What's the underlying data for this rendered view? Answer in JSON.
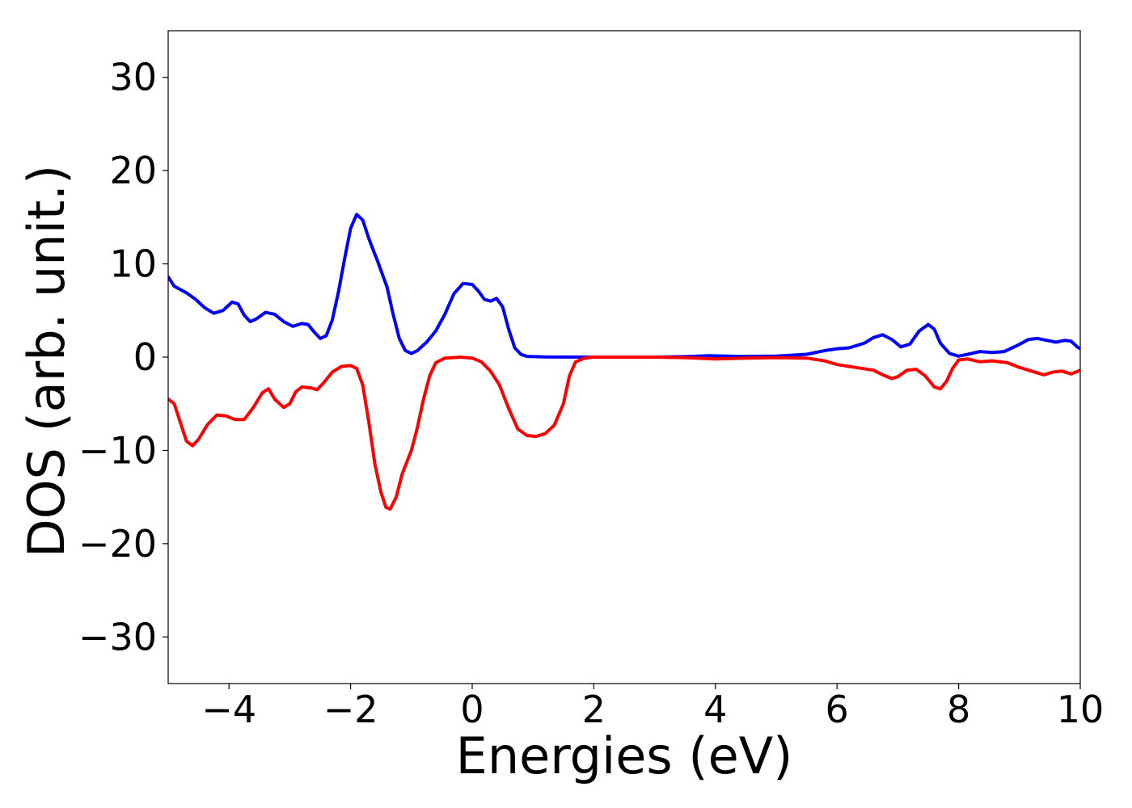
{
  "chart_data": {
    "type": "line",
    "title": "",
    "xlabel": "Energies (eV)",
    "ylabel": "DOS (arb. unit.)",
    "xlim": [
      -5,
      10
    ],
    "ylim": [
      -35,
      35
    ],
    "xticks": [
      -4,
      -2,
      0,
      2,
      4,
      6,
      8,
      10
    ],
    "xtick_labels": [
      "−4",
      "−2",
      "0",
      "2",
      "4",
      "6",
      "8",
      "10"
    ],
    "yticks": [
      -30,
      -20,
      -10,
      0,
      10,
      20,
      30
    ],
    "ytick_labels": [
      "−30",
      "−20",
      "−10",
      "0",
      "10",
      "20",
      "30"
    ],
    "grid": false,
    "legend": null,
    "series": [
      {
        "color": "#0000ff",
        "points": [
          [
            -5.0,
            8.6
          ],
          [
            -4.9,
            7.6
          ],
          [
            -4.7,
            6.9
          ],
          [
            -4.55,
            6.2
          ],
          [
            -4.4,
            5.3
          ],
          [
            -4.25,
            4.7
          ],
          [
            -4.1,
            5.0
          ],
          [
            -3.95,
            5.9
          ],
          [
            -3.85,
            5.7
          ],
          [
            -3.75,
            4.5
          ],
          [
            -3.65,
            3.8
          ],
          [
            -3.55,
            4.1
          ],
          [
            -3.4,
            4.8
          ],
          [
            -3.25,
            4.6
          ],
          [
            -3.1,
            3.8
          ],
          [
            -2.95,
            3.3
          ],
          [
            -2.8,
            3.6
          ],
          [
            -2.7,
            3.5
          ],
          [
            -2.6,
            2.7
          ],
          [
            -2.5,
            2.0
          ],
          [
            -2.4,
            2.3
          ],
          [
            -2.3,
            4.0
          ],
          [
            -2.2,
            7.0
          ],
          [
            -2.1,
            10.5
          ],
          [
            -2.0,
            13.8
          ],
          [
            -1.9,
            15.3
          ],
          [
            -1.8,
            14.7
          ],
          [
            -1.7,
            12.7
          ],
          [
            -1.55,
            10.2
          ],
          [
            -1.4,
            7.5
          ],
          [
            -1.3,
            4.6
          ],
          [
            -1.2,
            2.0
          ],
          [
            -1.1,
            0.7
          ],
          [
            -1.0,
            0.4
          ],
          [
            -0.9,
            0.7
          ],
          [
            -0.75,
            1.6
          ],
          [
            -0.6,
            2.8
          ],
          [
            -0.45,
            4.6
          ],
          [
            -0.3,
            6.8
          ],
          [
            -0.15,
            7.9
          ],
          [
            0.0,
            7.8
          ],
          [
            0.1,
            7.1
          ],
          [
            0.2,
            6.2
          ],
          [
            0.3,
            6.0
          ],
          [
            0.4,
            6.3
          ],
          [
            0.5,
            5.4
          ],
          [
            0.6,
            3.0
          ],
          [
            0.7,
            1.0
          ],
          [
            0.8,
            0.3
          ],
          [
            0.9,
            0.08
          ],
          [
            1.2,
            0.02
          ],
          [
            2.0,
            0.0
          ],
          [
            3.0,
            0.0
          ],
          [
            3.5,
            0.05
          ],
          [
            3.9,
            0.15
          ],
          [
            4.4,
            0.08
          ],
          [
            5.0,
            0.1
          ],
          [
            5.5,
            0.3
          ],
          [
            5.8,
            0.7
          ],
          [
            6.0,
            0.9
          ],
          [
            6.2,
            1.0
          ],
          [
            6.45,
            1.5
          ],
          [
            6.6,
            2.1
          ],
          [
            6.75,
            2.4
          ],
          [
            6.9,
            1.9
          ],
          [
            7.05,
            1.1
          ],
          [
            7.2,
            1.4
          ],
          [
            7.35,
            2.8
          ],
          [
            7.5,
            3.5
          ],
          [
            7.6,
            3.0
          ],
          [
            7.7,
            1.5
          ],
          [
            7.85,
            0.4
          ],
          [
            8.0,
            0.1
          ],
          [
            8.15,
            0.3
          ],
          [
            8.35,
            0.6
          ],
          [
            8.55,
            0.5
          ],
          [
            8.75,
            0.6
          ],
          [
            8.95,
            1.2
          ],
          [
            9.15,
            1.9
          ],
          [
            9.3,
            2.0
          ],
          [
            9.45,
            1.8
          ],
          [
            9.6,
            1.6
          ],
          [
            9.75,
            1.8
          ],
          [
            9.85,
            1.7
          ],
          [
            9.95,
            1.1
          ],
          [
            10.0,
            0.9
          ]
        ]
      },
      {
        "color": "#ff0000",
        "points": [
          [
            -5.0,
            -4.5
          ],
          [
            -4.9,
            -5.0
          ],
          [
            -4.8,
            -7.0
          ],
          [
            -4.7,
            -9.0
          ],
          [
            -4.6,
            -9.5
          ],
          [
            -4.5,
            -8.8
          ],
          [
            -4.35,
            -7.2
          ],
          [
            -4.2,
            -6.2
          ],
          [
            -4.05,
            -6.3
          ],
          [
            -3.9,
            -6.7
          ],
          [
            -3.75,
            -6.7
          ],
          [
            -3.6,
            -5.4
          ],
          [
            -3.45,
            -3.8
          ],
          [
            -3.35,
            -3.4
          ],
          [
            -3.25,
            -4.5
          ],
          [
            -3.1,
            -5.4
          ],
          [
            -3.0,
            -5.0
          ],
          [
            -2.9,
            -3.7
          ],
          [
            -2.8,
            -3.2
          ],
          [
            -2.65,
            -3.3
          ],
          [
            -2.55,
            -3.5
          ],
          [
            -2.45,
            -2.8
          ],
          [
            -2.3,
            -1.6
          ],
          [
            -2.15,
            -1.0
          ],
          [
            -2.0,
            -0.9
          ],
          [
            -1.9,
            -1.2
          ],
          [
            -1.8,
            -3.0
          ],
          [
            -1.7,
            -7.0
          ],
          [
            -1.6,
            -11.5
          ],
          [
            -1.5,
            -14.5
          ],
          [
            -1.42,
            -16.1
          ],
          [
            -1.35,
            -16.3
          ],
          [
            -1.25,
            -15.0
          ],
          [
            -1.15,
            -12.5
          ],
          [
            -1.0,
            -10.0
          ],
          [
            -0.9,
            -7.5
          ],
          [
            -0.8,
            -4.5
          ],
          [
            -0.7,
            -2.0
          ],
          [
            -0.6,
            -0.6
          ],
          [
            -0.45,
            -0.1
          ],
          [
            -0.2,
            0.0
          ],
          [
            0.0,
            -0.1
          ],
          [
            0.15,
            -0.5
          ],
          [
            0.3,
            -1.5
          ],
          [
            0.45,
            -3.0
          ],
          [
            0.6,
            -5.5
          ],
          [
            0.75,
            -7.7
          ],
          [
            0.9,
            -8.4
          ],
          [
            1.05,
            -8.5
          ],
          [
            1.2,
            -8.2
          ],
          [
            1.35,
            -7.3
          ],
          [
            1.5,
            -5.0
          ],
          [
            1.6,
            -2.0
          ],
          [
            1.7,
            -0.5
          ],
          [
            1.85,
            -0.1
          ],
          [
            2.0,
            0.0
          ],
          [
            3.0,
            0.0
          ],
          [
            3.5,
            -0.05
          ],
          [
            4.0,
            -0.2
          ],
          [
            4.5,
            -0.1
          ],
          [
            5.0,
            -0.05
          ],
          [
            5.5,
            -0.1
          ],
          [
            5.8,
            -0.4
          ],
          [
            6.0,
            -0.8
          ],
          [
            6.3,
            -1.1
          ],
          [
            6.6,
            -1.4
          ],
          [
            6.75,
            -1.9
          ],
          [
            6.9,
            -2.3
          ],
          [
            7.0,
            -2.1
          ],
          [
            7.15,
            -1.4
          ],
          [
            7.3,
            -1.3
          ],
          [
            7.45,
            -2.0
          ],
          [
            7.6,
            -3.2
          ],
          [
            7.7,
            -3.4
          ],
          [
            7.8,
            -2.6
          ],
          [
            7.9,
            -1.2
          ],
          [
            8.0,
            -0.3
          ],
          [
            8.15,
            -0.2
          ],
          [
            8.35,
            -0.5
          ],
          [
            8.55,
            -0.4
          ],
          [
            8.8,
            -0.6
          ],
          [
            9.0,
            -1.1
          ],
          [
            9.2,
            -1.5
          ],
          [
            9.4,
            -1.9
          ],
          [
            9.55,
            -1.6
          ],
          [
            9.7,
            -1.5
          ],
          [
            9.85,
            -1.8
          ],
          [
            10.0,
            -1.4
          ]
        ]
      }
    ]
  }
}
